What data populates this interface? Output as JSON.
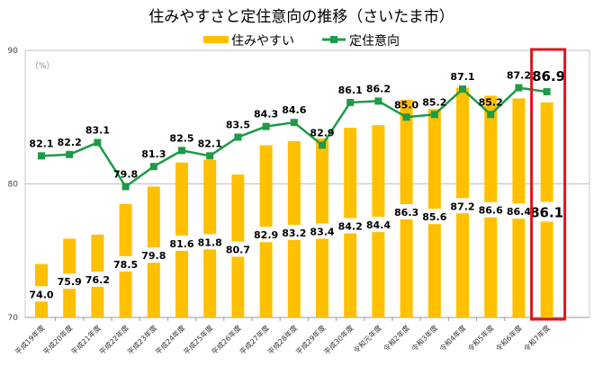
{
  "chart_data": {
    "type": "bar+line",
    "title": "住みやすさと定住意向の推移（さいたま市）",
    "unit_label": "（%）",
    "legend_position": "top",
    "ylim": [
      70,
      90
    ],
    "yticks": [
      "70",
      "80",
      "90"
    ],
    "grid": true,
    "categories": [
      "平成19年度",
      "平成20年度",
      "平成21年度",
      "平成22年度",
      "平成23年度",
      "平成24年度",
      "平成25年度",
      "平成26年度",
      "平成27年度",
      "平成28年度",
      "平成29年度",
      "平成30年度",
      "令和元年度",
      "令和2年度",
      "令和3年度",
      "令和4年度",
      "令和5年度",
      "令和6年度",
      "令和7年度"
    ],
    "series": [
      {
        "name": "住みやすい",
        "type": "bar",
        "color": "#FFC000",
        "values": [
          74.0,
          75.9,
          76.2,
          78.5,
          79.8,
          81.6,
          81.8,
          80.7,
          82.9,
          83.2,
          83.4,
          84.2,
          84.4,
          86.3,
          85.6,
          87.2,
          86.6,
          86.4,
          86.1
        ]
      },
      {
        "name": "定住意向",
        "type": "line",
        "color": "#1E9A48",
        "marker": "square",
        "values": [
          82.1,
          82.2,
          83.1,
          79.8,
          81.3,
          82.5,
          82.1,
          83.5,
          84.3,
          84.6,
          82.9,
          86.1,
          86.2,
          85.0,
          85.2,
          87.1,
          85.2,
          87.2,
          86.9
        ]
      }
    ],
    "highlight": {
      "category": "令和7年度",
      "color": "#E0141E"
    }
  }
}
